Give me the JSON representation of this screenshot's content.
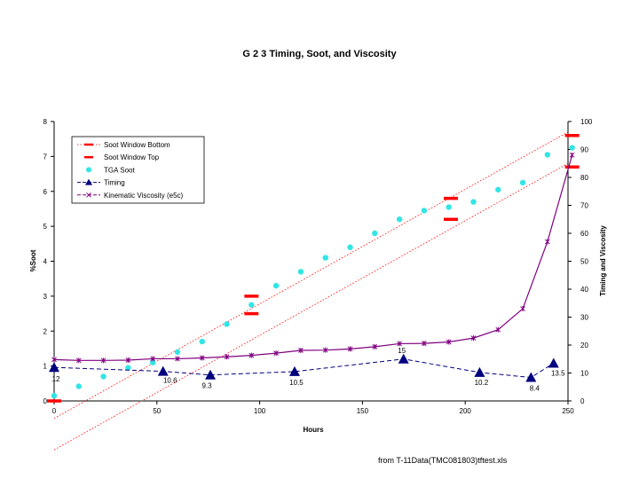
{
  "chart_data": {
    "type": "line",
    "title": "G 2 3 Timing, Soot, and Viscosity",
    "xlabel": "Hours",
    "ylabel_left": "%Soot",
    "ylabel_right": "Timing and Viscosity",
    "xlim": [
      0,
      250
    ],
    "ylim_left": [
      0,
      8
    ],
    "ylim_right": [
      0,
      100
    ],
    "x_ticks": [
      "0",
      "50",
      "100",
      "150",
      "200",
      "250"
    ],
    "y_left_ticks": [
      "0",
      "1",
      "2",
      "3",
      "4",
      "5",
      "6",
      "7",
      "8"
    ],
    "y_right_ticks": [
      "0",
      "10",
      "20",
      "30",
      "40",
      "50",
      "60",
      "70",
      "80",
      "90",
      "100"
    ],
    "legend": [
      {
        "name": "Soot Window Bottom",
        "style": "bottom"
      },
      {
        "name": "Soot Window Top",
        "style": "top"
      },
      {
        "name": "TGA Soot",
        "style": "tga"
      },
      {
        "name": "Timing",
        "style": "timing"
      },
      {
        "name": "Kinematic Viscosity (e5c)",
        "style": "visc"
      }
    ],
    "series": [
      {
        "name": "Soot Window Bottom",
        "axis": "left",
        "line": {
          "x": [
            0,
            250
          ],
          "y": [
            -1.4,
            6.8
          ]
        },
        "markers": [
          {
            "x": 0,
            "y": 0.0
          },
          {
            "x": 96,
            "y": 2.5
          },
          {
            "x": 193,
            "y": 5.2
          },
          {
            "x": 252,
            "y": 6.7
          }
        ]
      },
      {
        "name": "Soot Window Top",
        "axis": "left",
        "line": {
          "x": [
            0,
            250
          ],
          "y": [
            -0.5,
            7.7
          ]
        },
        "markers": [
          {
            "x": 96,
            "y": 3.0
          },
          {
            "x": 193,
            "y": 5.8
          },
          {
            "x": 252,
            "y": 7.6
          }
        ]
      },
      {
        "name": "TGA Soot",
        "axis": "left",
        "x": [
          0,
          12,
          24,
          36,
          48,
          60,
          72,
          84,
          96,
          108,
          120,
          132,
          144,
          156,
          168,
          180,
          192,
          204,
          216,
          228,
          240,
          252
        ],
        "y": [
          0.15,
          0.42,
          0.7,
          0.95,
          1.1,
          1.4,
          1.7,
          2.2,
          2.75,
          3.3,
          3.7,
          4.1,
          4.4,
          4.8,
          5.2,
          5.45,
          5.55,
          5.7,
          6.05,
          6.25,
          7.05,
          7.25
        ]
      },
      {
        "name": "Timing",
        "axis": "right",
        "x": [
          0,
          53,
          76,
          117,
          170,
          207,
          232,
          243
        ],
        "y": [
          12,
          10.6,
          9.3,
          10.5,
          15,
          10.2,
          8.4,
          13.5
        ],
        "labels": [
          "12",
          "10.6",
          "9.3",
          "10.5",
          "15",
          "10.2",
          "8.4",
          "13.5"
        ]
      },
      {
        "name": "Kinematic Viscosity (e5c)",
        "axis": "right",
        "x": [
          0,
          12,
          24,
          36,
          48,
          60,
          72,
          84,
          96,
          108,
          120,
          132,
          144,
          156,
          168,
          180,
          192,
          204,
          216,
          228,
          240,
          252
        ],
        "y": [
          14.8,
          14.5,
          14.5,
          14.6,
          15.1,
          15.1,
          15.4,
          15.8,
          16.3,
          17.1,
          18.1,
          18.2,
          18.6,
          19.4,
          20.5,
          20.6,
          21.1,
          22.5,
          25.5,
          33,
          57,
          88
        ]
      }
    ]
  },
  "footnote": "from T-11Data(TMC081803)tftest.xls"
}
